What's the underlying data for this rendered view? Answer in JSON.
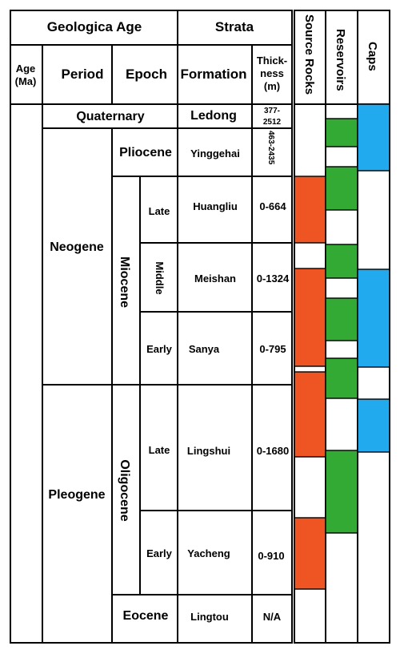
{
  "headers": {
    "geological_age": "Geologica Age",
    "strata": "Strata",
    "source_rocks": "Source Rocks",
    "reservoirs": "Reservoirs",
    "caps": "Caps",
    "age_line1": "Age",
    "age_line2": "(Ma)",
    "period": "Period",
    "epoch": "Epoch",
    "formation": "Formation",
    "thickness_line1": "Thick-",
    "thickness_line2": "ness",
    "thickness_line3": "(m)"
  },
  "units": {
    "quaternary": "Quaternary",
    "neogene": "Neogene",
    "pleogene": "Pleogene",
    "pliocene": "Pliocene",
    "miocene": "Miocene",
    "oligocene": "Oligocene",
    "eocene": "Eocene",
    "miocene_late": "Late",
    "miocene_middle": "Middle",
    "miocene_early": "Early",
    "oligocene_late": "Late",
    "oligocene_early": "Early"
  },
  "formations": {
    "ledong": "Ledong",
    "yinggehai": "Yinggehai",
    "huangliu": "Huangliu",
    "meishan": "Meishan",
    "sanya": "Sanya",
    "lingshui": "Lingshui",
    "yacheng": "Yacheng",
    "lingtou": "Lingtou"
  },
  "thickness": {
    "ledong_line1": "377-",
    "ledong_line2": "2512",
    "yinggehai": "463-2435",
    "huangliu": "0-664",
    "meishan": "0-1324",
    "sanya": "0-795",
    "lingshui": "0-1680",
    "yacheng": "0-910",
    "lingtou": "N/A"
  },
  "colors": {
    "source_rocks": "#ee5522",
    "reservoirs": "#33aa33",
    "caps": "#22aaee",
    "lines": "#000000",
    "background": "#ffffff"
  }
}
